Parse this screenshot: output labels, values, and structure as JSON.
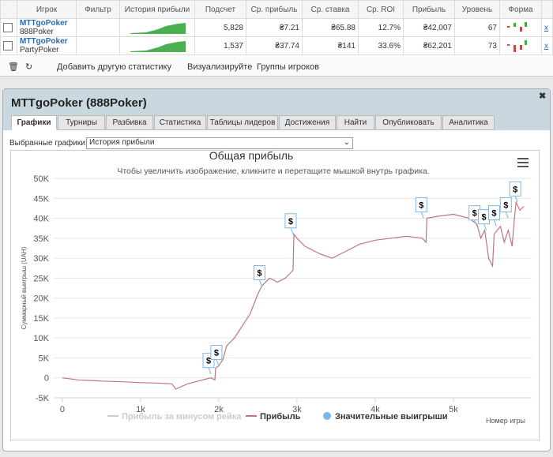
{
  "table": {
    "headers": [
      "Игрок",
      "Фильтр",
      "История прибыли",
      "Подсчет",
      "Ср. прибыль",
      "Ср. ставка",
      "Ср. ROI",
      "Прибыль",
      "Уровень",
      "Форма"
    ],
    "rows": [
      {
        "player": "MTTgoPoker",
        "room": "888Poker",
        "cells": [
          "5,828",
          "₴7.21",
          "₴65.88",
          "12.7%",
          "₴42,007",
          "67"
        ]
      },
      {
        "player": "MTTgoPoker",
        "room": "PartyPoker",
        "cells": [
          "1,537",
          "₴37.74",
          "₴141",
          "33.6%",
          "₴62,201",
          "73"
        ]
      }
    ],
    "remove_label": "x"
  },
  "toolbar": [
    "Добавить другую статистику",
    "Визуализируйте",
    "Группы игроков"
  ],
  "panel": {
    "title": "MTTgoPoker (888Poker)",
    "tabs": [
      "Графики",
      "Турниры",
      "Разбивка",
      "Статистика",
      "Таблицы лидеров",
      "Достижения",
      "Найти",
      "Опубликовать",
      "Аналитика"
    ],
    "select_label": "Выбранные графики:",
    "select_value": "История прибыли"
  },
  "chart_data": {
    "type": "line",
    "title": "Общая прибыль",
    "subtitle": "Чтобы увеличить изображение, кликните и перетащите мышкой внутрь графика.",
    "y_label": "Суммарный выигрыш (UAH)",
    "x_label": "Номер игры",
    "xlim": [
      -110,
      6000
    ],
    "ylim": [
      -5000,
      50000
    ],
    "xticks": [
      0,
      {
        "value": 1000,
        "label": "1k"
      },
      {
        "value": 2000,
        "label": "2k"
      },
      {
        "value": 3000,
        "label": "3k"
      },
      {
        "value": 4000,
        "label": "4k"
      },
      {
        "value": 5000,
        "label": "5k"
      }
    ],
    "yticks": [
      {
        "value": -5000,
        "label": "-5K"
      },
      0,
      {
        "value": 5000,
        "label": "5K"
      },
      {
        "value": 10000,
        "label": "10K"
      },
      {
        "value": 15000,
        "label": "15K"
      },
      {
        "value": 20000,
        "label": "20K"
      },
      {
        "value": 25000,
        "label": "25K"
      },
      {
        "value": 30000,
        "label": "30K"
      },
      {
        "value": 35000,
        "label": "35K"
      },
      {
        "value": 40000,
        "label": "40K"
      },
      {
        "value": 45000,
        "label": "45K"
      },
      {
        "value": 50000,
        "label": "50K"
      }
    ],
    "grid": true,
    "series": [
      {
        "name": "Прибыль за минусом рейка",
        "color": "#cccccc",
        "visible": false
      },
      {
        "name": "Прибыль",
        "color": "#c0767a",
        "x": [
          0,
          200,
          500,
          800,
          1000,
          1200,
          1400,
          1450,
          1600,
          1700,
          1900,
          1950,
          1960,
          2000,
          2050,
          2100,
          2200,
          2300,
          2400,
          2500,
          2550,
          2600,
          2650,
          2750,
          2850,
          2950,
          2960,
          3000,
          3100,
          3200,
          3300,
          3450,
          3600,
          3800,
          4000,
          4200,
          4400,
          4600,
          4650,
          4660,
          4800,
          5000,
          5200,
          5300,
          5350,
          5400,
          5450,
          5500,
          5520,
          5600,
          5650,
          5700,
          5750,
          5780,
          5800,
          5850,
          5900
        ],
        "values": [
          0,
          -500,
          -800,
          -1000,
          -1200,
          -1300,
          -1500,
          -2800,
          -1500,
          -1000,
          0,
          -500,
          2500,
          3000,
          4500,
          8000,
          10000,
          13000,
          16000,
          21000,
          23000,
          24000,
          25000,
          24000,
          25000,
          27000,
          36000,
          35000,
          33000,
          32000,
          31000,
          30000,
          31500,
          33500,
          34500,
          35000,
          35500,
          35000,
          34000,
          40000,
          40500,
          41000,
          40000,
          38500,
          35000,
          37000,
          30000,
          28000,
          36000,
          38000,
          34000,
          37000,
          33000,
          40000,
          44000,
          42000,
          43000
        ]
      },
      {
        "name": "Значительные выигрыши",
        "color": "#7cb5ec",
        "flag_label": "$",
        "x": [
          1900,
          2000,
          2550,
          2950,
          4620,
          5300,
          5420,
          5550,
          5700,
          5820
        ],
        "values": [
          1000,
          3000,
          23000,
          36000,
          40000,
          38000,
          37000,
          38000,
          40000,
          44000
        ]
      }
    ]
  }
}
